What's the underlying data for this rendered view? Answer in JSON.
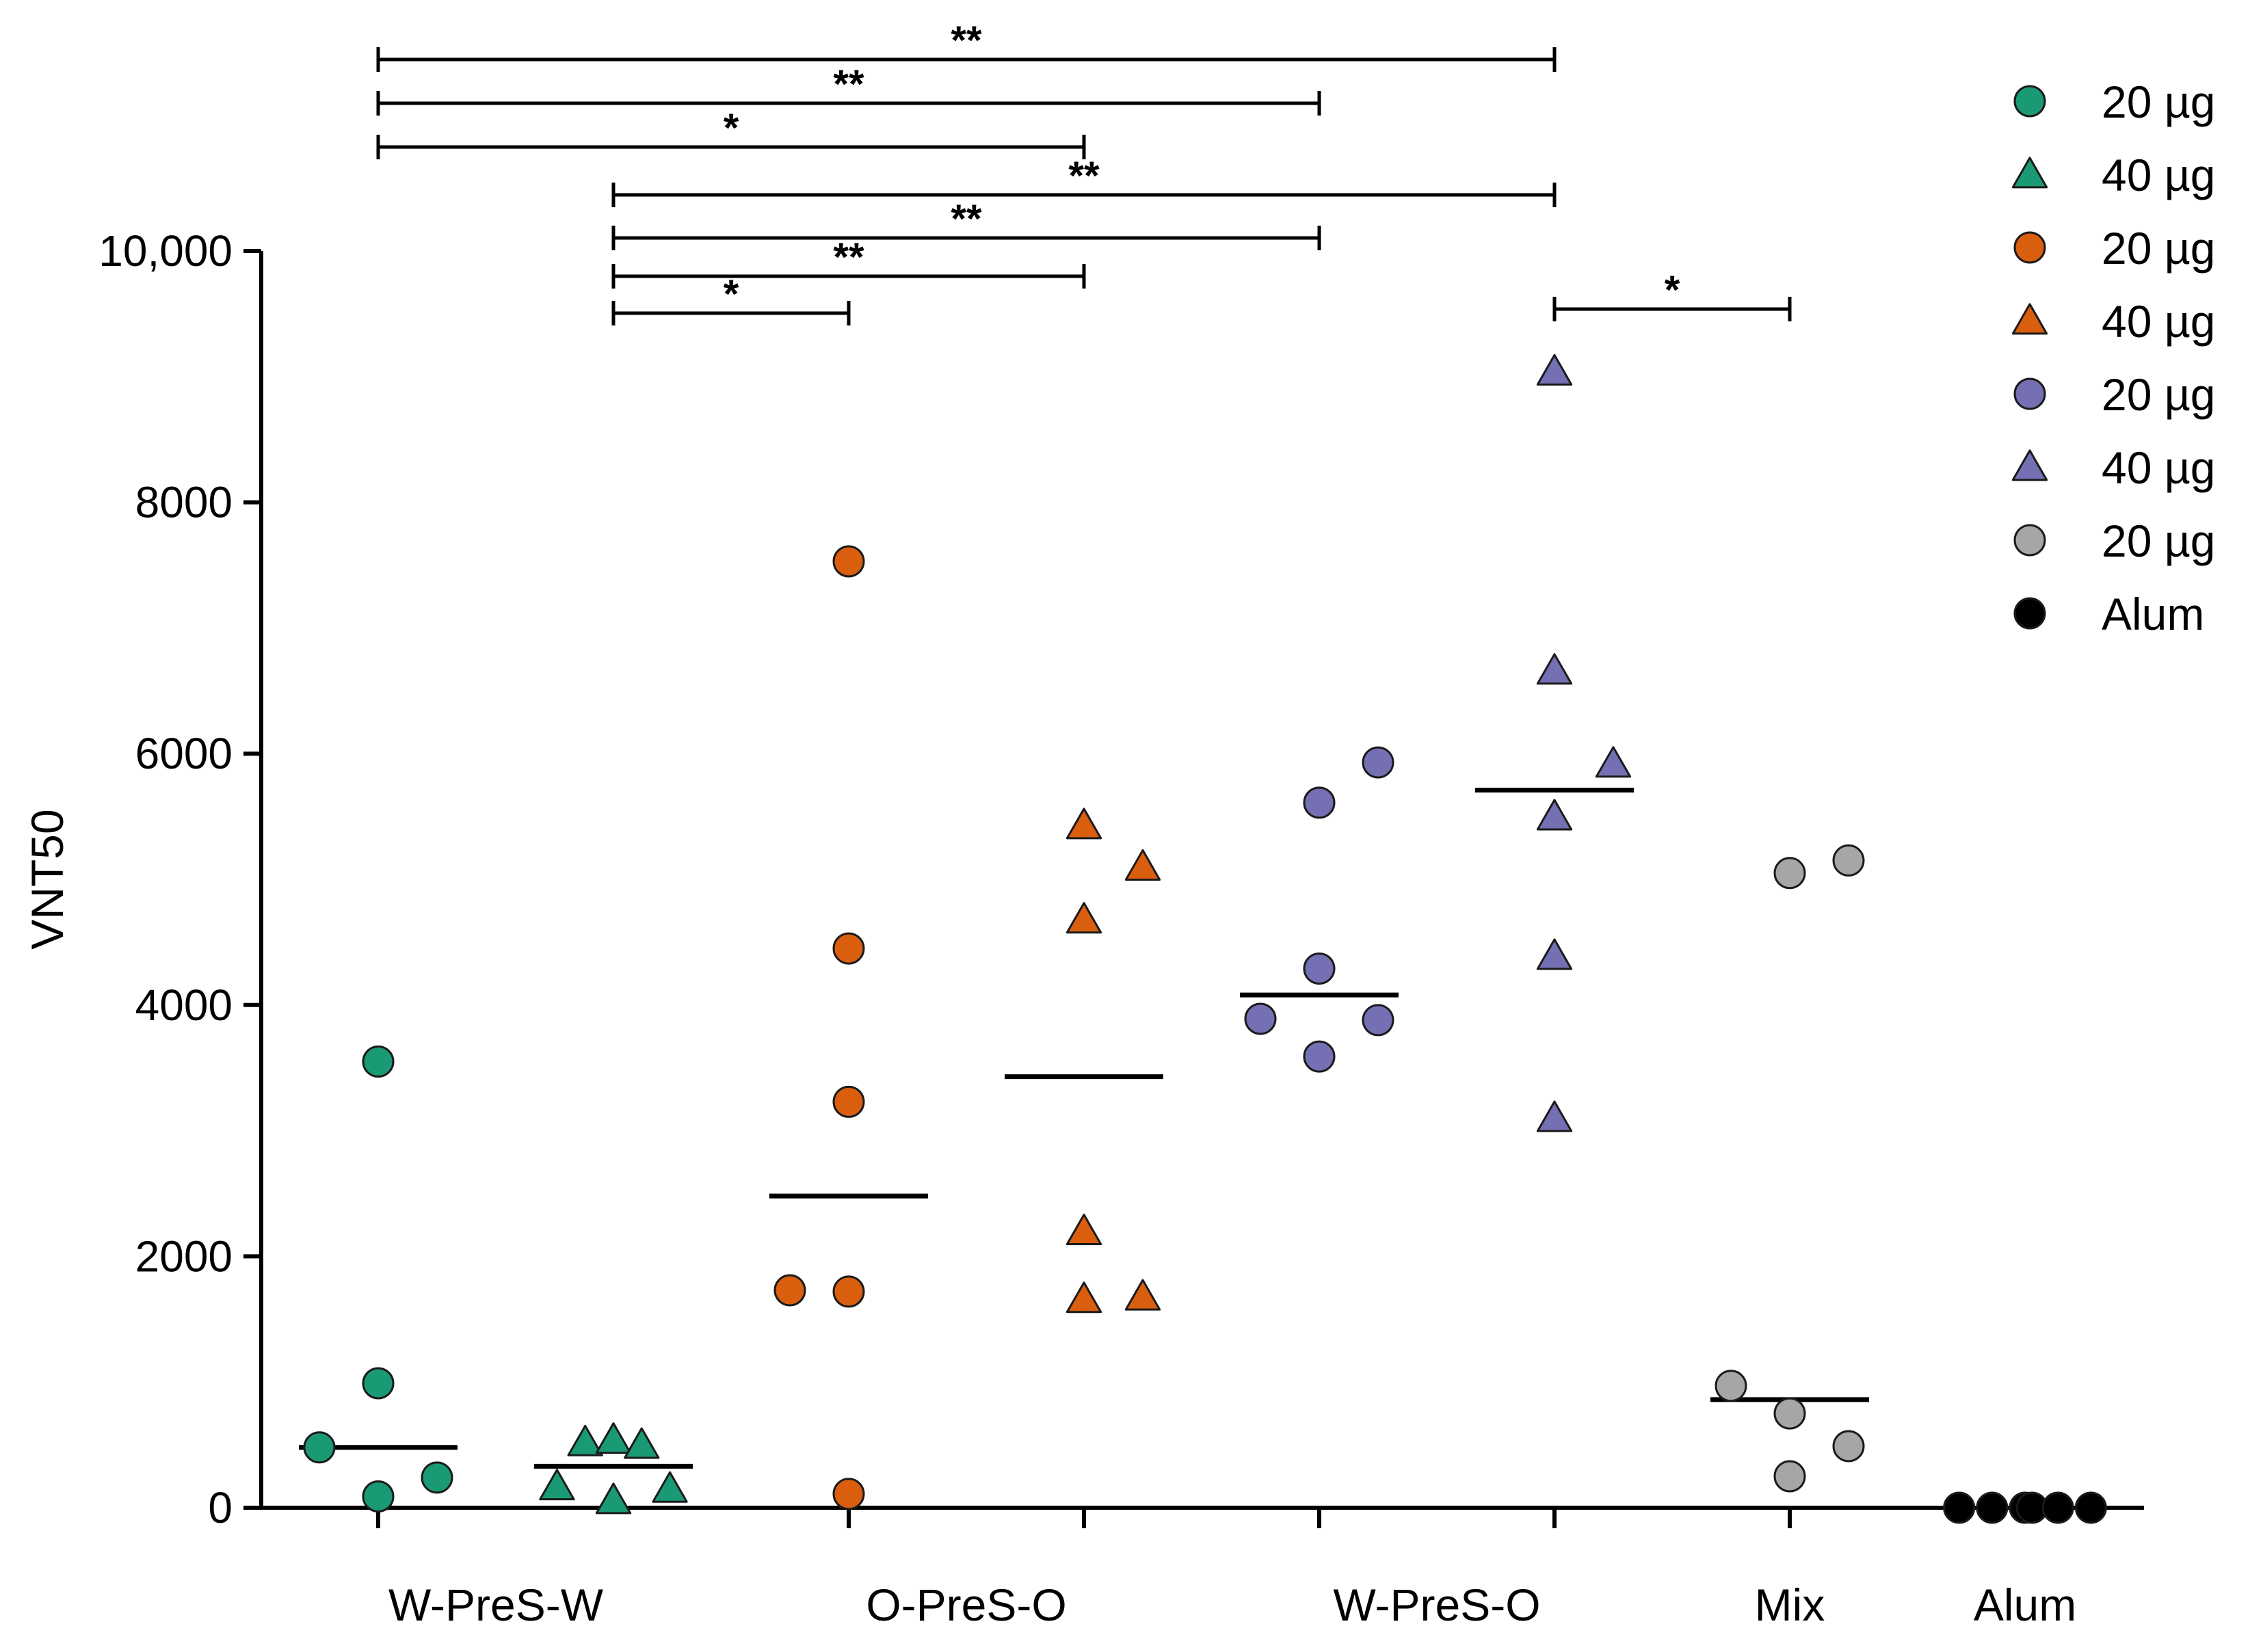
{
  "chart_data": {
    "type": "scatter",
    "title": "",
    "ylabel": "VNT50",
    "xlabel": "",
    "ylim": [
      0,
      10000
    ],
    "y_ticks": [
      {
        "value": 0,
        "label": "0"
      },
      {
        "value": 2000,
        "label": "2000"
      },
      {
        "value": 4000,
        "label": "4000"
      },
      {
        "value": 6000,
        "label": "6000"
      },
      {
        "value": 8000,
        "label": "8000"
      },
      {
        "value": 10000,
        "label": "10,000"
      }
    ],
    "groups": [
      {
        "label": "W-PreS-W",
        "from": 1,
        "to": 2
      },
      {
        "label": "O-PreS-O",
        "from": 3,
        "to": 4
      },
      {
        "label": "W-PreS-O",
        "from": 5,
        "to": 6
      },
      {
        "label": "Mix",
        "from": 7,
        "to": 7
      },
      {
        "label": "Alum",
        "from": 8,
        "to": 8
      }
    ],
    "legend_position": "top-right",
    "series": [
      {
        "name": "20 µg",
        "marker": "circle",
        "color": "#1a9a74",
        "position": 1,
        "median": 480,
        "points": [
          {
            "dx": 0,
            "y": 3550
          },
          {
            "dx": 0,
            "y": 990
          },
          {
            "dx": -0.25,
            "y": 480
          },
          {
            "dx": 0.25,
            "y": 240
          },
          {
            "dx": 0,
            "y": 90
          }
        ]
      },
      {
        "name": "40 µg",
        "marker": "triangle",
        "color": "#1a9a74",
        "position": 2,
        "median": 330,
        "points": [
          {
            "dx": -0.12,
            "y": 520
          },
          {
            "dx": 0,
            "y": 540
          },
          {
            "dx": 0.12,
            "y": 500
          },
          {
            "dx": -0.24,
            "y": 170
          },
          {
            "dx": 0,
            "y": 60
          },
          {
            "dx": 0.24,
            "y": 150
          }
        ]
      },
      {
        "name": "20 µg",
        "marker": "circle",
        "color": "#d95f0e",
        "position": 3,
        "median": 2480,
        "points": [
          {
            "dx": 0,
            "y": 7530
          },
          {
            "dx": 0,
            "y": 4450
          },
          {
            "dx": 0,
            "y": 3230
          },
          {
            "dx": -0.25,
            "y": 1730
          },
          {
            "dx": 0,
            "y": 1720
          },
          {
            "dx": 0,
            "y": 110
          }
        ]
      },
      {
        "name": "40 µg",
        "marker": "triangle",
        "color": "#d95f0e",
        "position": 4,
        "median": 3430,
        "points": [
          {
            "dx": 0,
            "y": 5430
          },
          {
            "dx": 0.25,
            "y": 5100
          },
          {
            "dx": 0,
            "y": 4680
          },
          {
            "dx": 0,
            "y": 2200
          },
          {
            "dx": 0,
            "y": 1660
          },
          {
            "dx": 0.25,
            "y": 1680
          }
        ]
      },
      {
        "name": "20 µg",
        "marker": "circle",
        "color": "#7570b3",
        "position": 5,
        "median": 4080,
        "points": [
          {
            "dx": 0.25,
            "y": 5930
          },
          {
            "dx": 0,
            "y": 5610
          },
          {
            "dx": 0,
            "y": 4290
          },
          {
            "dx": -0.25,
            "y": 3890
          },
          {
            "dx": 0.25,
            "y": 3880
          },
          {
            "dx": 0,
            "y": 3590
          }
        ]
      },
      {
        "name": "40 µg",
        "marker": "triangle",
        "color": "#7570b3",
        "position": 6,
        "median": 5710,
        "points": [
          {
            "dx": 0,
            "y": 9040
          },
          {
            "dx": 0,
            "y": 6660
          },
          {
            "dx": 0.25,
            "y": 5920
          },
          {
            "dx": 0,
            "y": 5500
          },
          {
            "dx": 0,
            "y": 4390
          },
          {
            "dx": 0,
            "y": 3100
          }
        ]
      },
      {
        "name": "20 µg",
        "marker": "circle",
        "color": "#a6a6a6",
        "position": 7,
        "median": 860,
        "points": [
          {
            "dx": 0,
            "y": 5050
          },
          {
            "dx": 0.25,
            "y": 5150
          },
          {
            "dx": -0.25,
            "y": 970
          },
          {
            "dx": 0,
            "y": 750
          },
          {
            "dx": 0.25,
            "y": 490
          },
          {
            "dx": 0,
            "y": 250
          }
        ]
      },
      {
        "name": "Alum",
        "marker": "circle",
        "color": "#000000",
        "position": 8,
        "median": null,
        "points": [
          {
            "dx": -0.28,
            "y": 0
          },
          {
            "dx": -0.14,
            "y": 0
          },
          {
            "dx": 0,
            "y": 0
          },
          {
            "dx": 0.03,
            "y": 0
          },
          {
            "dx": 0.14,
            "y": 0
          },
          {
            "dx": 0.28,
            "y": 0
          }
        ]
      }
    ],
    "significance": [
      {
        "from": 1,
        "to": 6,
        "label": "**",
        "tier": "top"
      },
      {
        "from": 1,
        "to": 5,
        "label": "**",
        "tier": "top"
      },
      {
        "from": 1,
        "to": 4,
        "label": "*",
        "tier": "top"
      },
      {
        "from": 2,
        "to": 6,
        "label": "**",
        "tier": "mid"
      },
      {
        "from": 2,
        "to": 5,
        "label": "**",
        "tier": "mid"
      },
      {
        "from": 2,
        "to": 4,
        "label": "**",
        "tier": "mid"
      },
      {
        "from": 2,
        "to": 3,
        "label": "*",
        "tier": "mid"
      },
      {
        "from": 6,
        "to": 7,
        "label": "*",
        "tier": "low"
      }
    ]
  }
}
